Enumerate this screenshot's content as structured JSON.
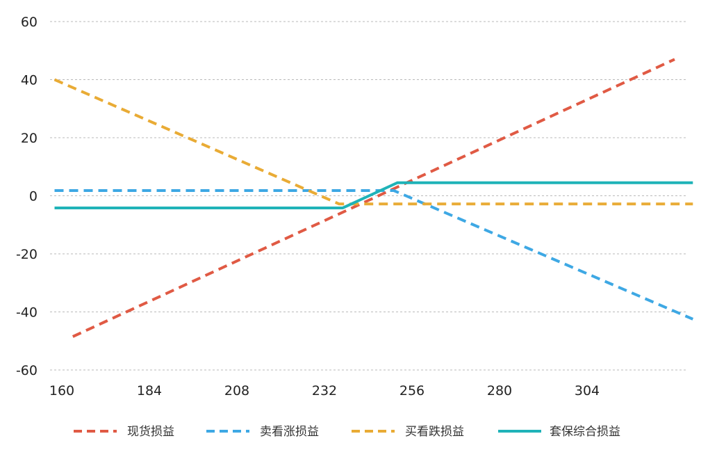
{
  "chart_data": {
    "type": "line",
    "title": "",
    "xlabel": "",
    "ylabel": "",
    "x_ticks": [
      "160",
      "184",
      "208",
      "232",
      "256",
      "280",
      "304"
    ],
    "y_ticks": [
      "60",
      "40",
      "20",
      "0",
      "-20",
      "-40",
      "-60"
    ],
    "xlim": [
      158,
      334
    ],
    "ylim": [
      -60,
      60
    ],
    "grid": true,
    "legend_position": "bottom",
    "series": [
      {
        "name": "现货损益",
        "color": "#e05a44",
        "style": "dashed",
        "points": [
          [
            163,
            -48.5
          ],
          [
            328,
            47
          ]
        ]
      },
      {
        "name": "卖看涨损益",
        "color": "#3ea8e4",
        "style": "dashed",
        "points": [
          [
            158,
            1.8
          ],
          [
            251,
            1.8
          ],
          [
            333,
            -42.5
          ]
        ]
      },
      {
        "name": "买看跌损益",
        "color": "#e9ab35",
        "style": "dashed",
        "points": [
          [
            158,
            40
          ],
          [
            236,
            -2.8
          ],
          [
            333,
            -2.8
          ]
        ]
      },
      {
        "name": "套保综合损益",
        "color": "#1fb3b8",
        "style": "solid",
        "points": [
          [
            158,
            -4.2
          ],
          [
            237,
            -4.2
          ],
          [
            252,
            4.5
          ],
          [
            333,
            4.5
          ]
        ]
      }
    ]
  }
}
